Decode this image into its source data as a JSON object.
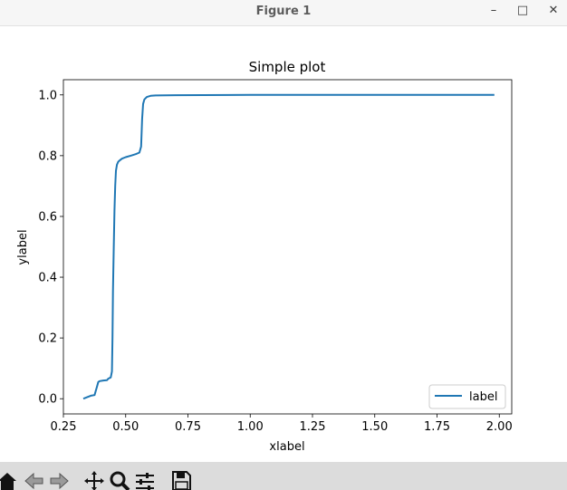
{
  "window": {
    "title": "Figure 1",
    "minimize_glyph": "–",
    "maximize_glyph": "□",
    "close_glyph": "✕"
  },
  "toolbar": {
    "tools": [
      {
        "name": "home-icon"
      },
      {
        "name": "back-icon"
      },
      {
        "name": "forward-icon"
      },
      {
        "name": "pan-icon"
      },
      {
        "name": "zoom-icon"
      },
      {
        "name": "subplots-icon"
      },
      {
        "name": "save-icon"
      }
    ]
  },
  "chart_data": {
    "type": "line",
    "title": "Simple plot",
    "xlabel": "xlabel",
    "ylabel": "ylabel",
    "xlim": [
      0.25,
      2.05
    ],
    "ylim": [
      -0.05,
      1.05
    ],
    "xticks": [
      0.25,
      0.5,
      0.75,
      1.0,
      1.25,
      1.5,
      1.75,
      2.0
    ],
    "xtick_labels": [
      "0.25",
      "0.50",
      "0.75",
      "1.00",
      "1.25",
      "1.50",
      "1.75",
      "2.00"
    ],
    "yticks": [
      0.0,
      0.2,
      0.4,
      0.6,
      0.8,
      1.0
    ],
    "ytick_labels": [
      "0.0",
      "0.2",
      "0.4",
      "0.6",
      "0.8",
      "1.0"
    ],
    "grid": false,
    "legend_position": "bottom-right",
    "series": [
      {
        "name": "label",
        "color": "#1f77b4",
        "x": [
          0.33,
          0.345,
          0.36,
          0.375,
          0.385,
          0.39,
          0.395,
          0.41,
          0.425,
          0.43,
          0.44,
          0.445,
          0.447,
          0.449,
          0.452,
          0.455,
          0.458,
          0.461,
          0.465,
          0.47,
          0.477,
          0.485,
          0.5,
          0.52,
          0.54,
          0.555,
          0.562,
          0.566,
          0.57,
          0.575,
          0.585,
          0.6,
          0.62,
          0.7,
          1.0,
          1.5,
          1.98
        ],
        "y": [
          0.0,
          0.005,
          0.01,
          0.012,
          0.04,
          0.055,
          0.058,
          0.06,
          0.061,
          0.066,
          0.07,
          0.09,
          0.2,
          0.35,
          0.5,
          0.62,
          0.7,
          0.75,
          0.77,
          0.78,
          0.785,
          0.79,
          0.795,
          0.8,
          0.805,
          0.81,
          0.83,
          0.92,
          0.97,
          0.985,
          0.993,
          0.997,
          0.998,
          0.999,
          1.0,
          1.0,
          1.0
        ]
      }
    ]
  }
}
